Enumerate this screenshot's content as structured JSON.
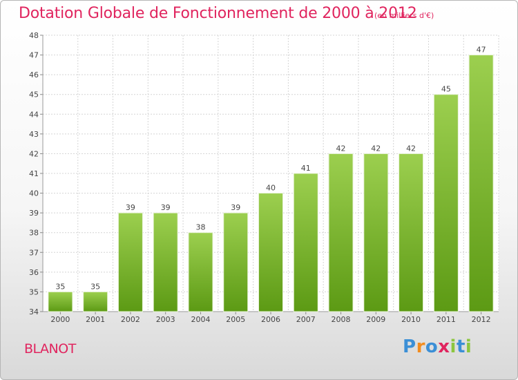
{
  "header": {
    "title": "Dotation Globale de Fonctionnement de 2000 à 2012",
    "unit": "(en milliers d'€)"
  },
  "commune": "BLANOT",
  "logo": {
    "letters": [
      "P",
      "r",
      "o",
      "x",
      "i",
      "t",
      "i"
    ],
    "colors": [
      "#3b8fd6",
      "#f28c1e",
      "#3b8fd6",
      "#e0245e",
      "#8cc63f",
      "#3b8fd6",
      "#8cc63f"
    ]
  },
  "colors": {
    "bar_top": "#9ccf4f",
    "bar_bottom": "#5c9a14",
    "title": "#e0245e"
  },
  "chart_data": {
    "type": "bar",
    "categories": [
      "2000",
      "2001",
      "2002",
      "2003",
      "2004",
      "2005",
      "2006",
      "2007",
      "2008",
      "2009",
      "2010",
      "2011",
      "2012"
    ],
    "values": [
      35,
      35,
      39,
      39,
      38,
      39,
      40,
      41,
      42,
      42,
      42,
      45,
      47
    ],
    "title": "Dotation Globale de Fonctionnement de 2000 à 2012",
    "ylim": [
      34,
      48
    ],
    "yticks": [
      34,
      35,
      36,
      37,
      38,
      39,
      40,
      41,
      42,
      43,
      44,
      45,
      46,
      47,
      48
    ],
    "grid": true
  }
}
